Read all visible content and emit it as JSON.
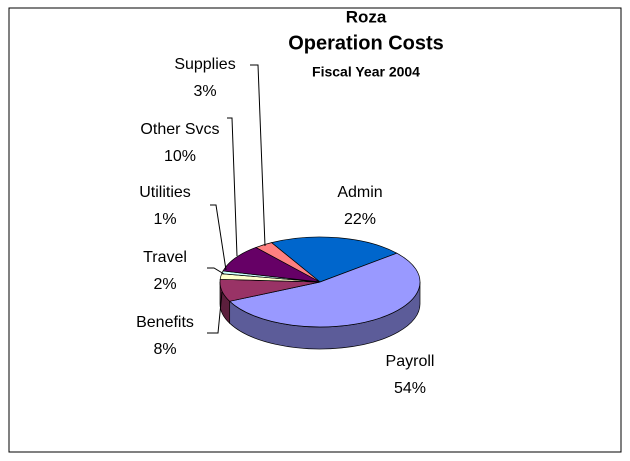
{
  "chart_data": {
    "type": "pie3d",
    "title": [
      "Roza",
      "Operation Costs"
    ],
    "subtitle": "Fiscal Year 2004",
    "categories": [
      "Admin",
      "Payroll",
      "Benefits",
      "Travel",
      "Utilities",
      "Other Svcs",
      "Supplies"
    ],
    "values": [
      22,
      54,
      8,
      2,
      1,
      10,
      3
    ],
    "value_labels": [
      "22%",
      "54%",
      "8%",
      "2%",
      "1%",
      "10%",
      "3%"
    ],
    "colors": [
      "#0066cc",
      "#9999ff",
      "#993366",
      "#ffffcc",
      "#ccffff",
      "#660066",
      "#ff8080"
    ]
  }
}
